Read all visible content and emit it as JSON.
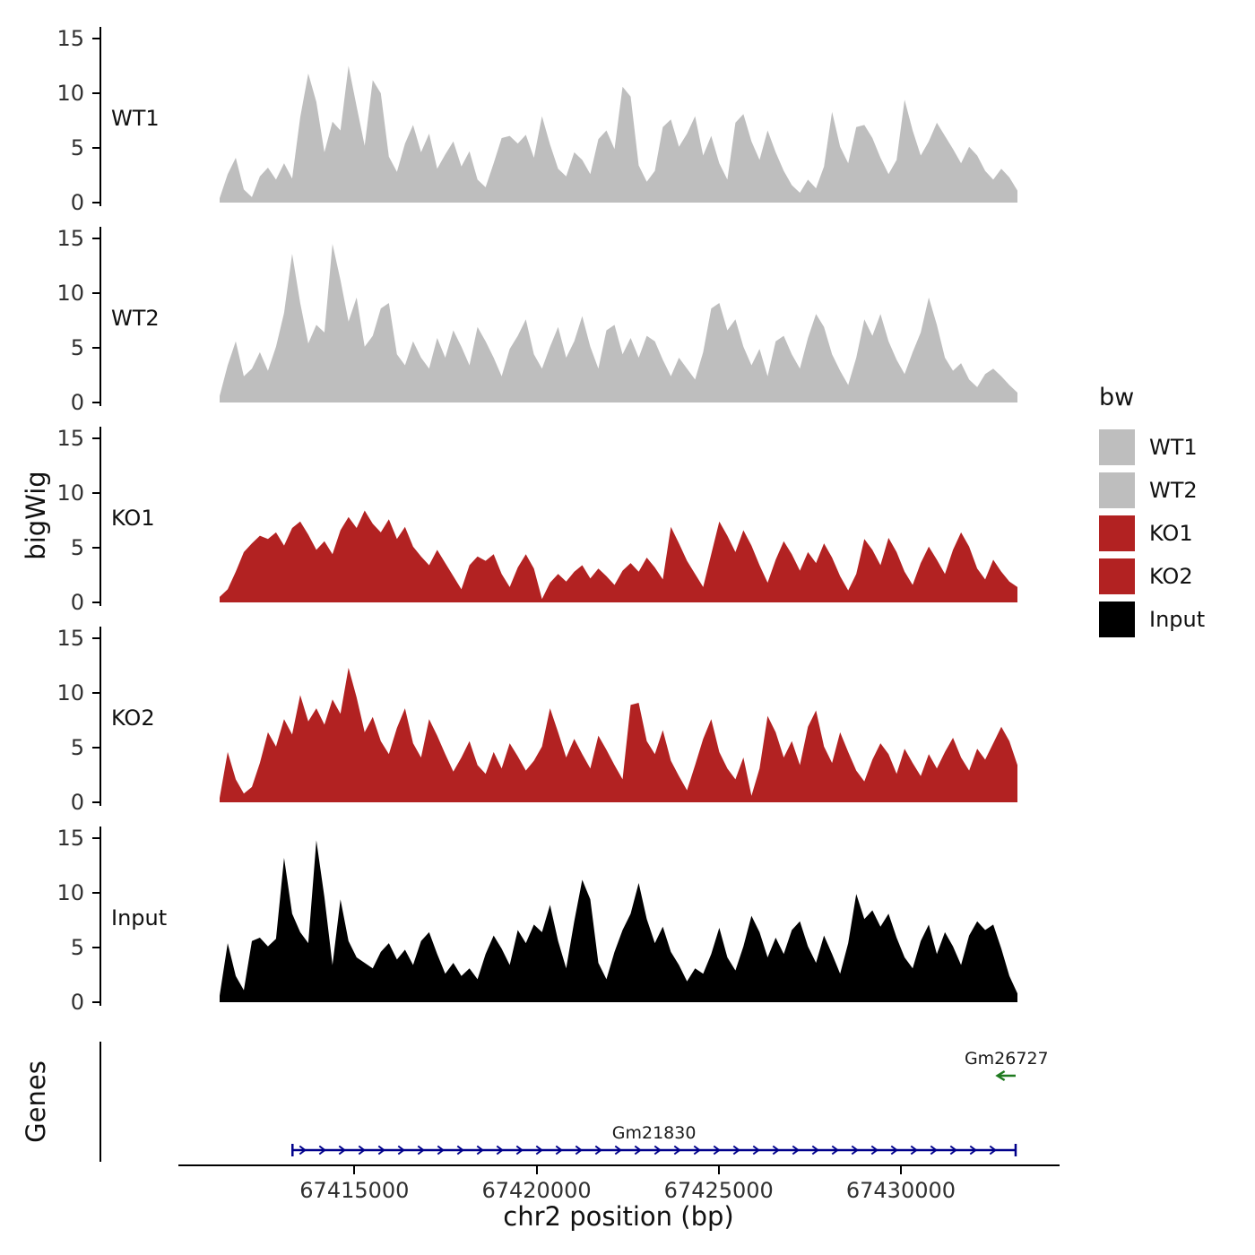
{
  "labels": {
    "y_axis_title": "bigWig",
    "genes_axis_title": "Genes",
    "x_axis_title": "chr2 position (bp)"
  },
  "legend": {
    "title": "bw",
    "items": [
      {
        "label": "WT1",
        "color": "#bebebe"
      },
      {
        "label": "WT2",
        "color": "#bebebe"
      },
      {
        "label": "KO1",
        "color": "#b22222"
      },
      {
        "label": "KO2",
        "color": "#b22222"
      },
      {
        "label": "Input",
        "color": "#000000"
      }
    ]
  },
  "chart_data": {
    "type": "area",
    "title": "",
    "xlabel": "chr2 position (bp)",
    "ylabel": "bigWig",
    "legend_position": "right",
    "x_domain_bp": [
      67411300,
      67433200
    ],
    "x_ticks": [
      67415000,
      67420000,
      67425000,
      67430000
    ],
    "y_ticks": [
      0,
      5,
      10,
      15
    ],
    "ylim": [
      0,
      15
    ],
    "tracks": [
      {
        "name": "WT1",
        "color": "#bebebe",
        "values": [
          0.4,
          2.6,
          4.1,
          1.2,
          0.5,
          2.4,
          3.2,
          2.1,
          3.6,
          2.2,
          7.8,
          11.8,
          9.2,
          4.6,
          7.4,
          6.6,
          12.5,
          8.8,
          5.2,
          11.2,
          10.0,
          4.2,
          2.8,
          5.4,
          7.1,
          4.6,
          6.3,
          3.1,
          4.4,
          5.6,
          3.3,
          4.7,
          2.1,
          1.4,
          3.6,
          5.9,
          6.1,
          5.4,
          6.2,
          4.1,
          7.9,
          5.3,
          3.1,
          2.4,
          4.6,
          3.9,
          2.6,
          5.8,
          6.6,
          4.9,
          10.6,
          9.7,
          3.4,
          1.9,
          2.9,
          6.9,
          7.6,
          5.1,
          6.3,
          7.9,
          4.3,
          6.1,
          3.6,
          2.1,
          7.3,
          8.1,
          5.6,
          3.9,
          6.6,
          4.6,
          2.9,
          1.6,
          0.9,
          2.1,
          1.3,
          3.3,
          8.3,
          5.1,
          3.6,
          6.9,
          7.1,
          5.9,
          4.1,
          2.6,
          3.9,
          9.4,
          6.6,
          4.3,
          5.6,
          7.3,
          6.1,
          4.9,
          3.6,
          5.1,
          4.3,
          2.9,
          2.1,
          3.1,
          2.3,
          1.1
        ]
      },
      {
        "name": "WT2",
        "color": "#bebebe",
        "values": [
          0.6,
          3.4,
          5.6,
          2.4,
          3.1,
          4.6,
          2.9,
          5.1,
          8.2,
          13.6,
          9.1,
          5.4,
          7.1,
          6.4,
          14.5,
          11.2,
          7.4,
          9.6,
          5.1,
          6.1,
          8.6,
          9.1,
          4.4,
          3.4,
          5.6,
          4.1,
          3.1,
          5.9,
          4.1,
          6.6,
          5.1,
          3.4,
          6.9,
          5.6,
          4.1,
          2.4,
          4.9,
          6.1,
          7.6,
          4.4,
          3.1,
          5.1,
          6.9,
          4.1,
          5.6,
          7.9,
          5.1,
          3.1,
          6.6,
          7.1,
          4.4,
          5.9,
          4.1,
          6.1,
          5.6,
          3.9,
          2.4,
          4.1,
          3.1,
          2.1,
          4.6,
          8.6,
          9.1,
          6.6,
          7.6,
          5.1,
          3.4,
          4.9,
          2.4,
          5.6,
          6.1,
          4.4,
          3.1,
          5.9,
          8.1,
          6.9,
          4.4,
          2.9,
          1.6,
          4.1,
          7.6,
          6.1,
          8.1,
          5.6,
          3.9,
          2.6,
          4.6,
          6.4,
          9.6,
          7.1,
          4.1,
          2.9,
          3.6,
          2.1,
          1.4,
          2.6,
          3.1,
          2.4,
          1.6,
          0.9
        ]
      },
      {
        "name": "KO1",
        "color": "#b22222",
        "values": [
          0.5,
          1.2,
          2.8,
          4.6,
          5.4,
          6.1,
          5.8,
          6.4,
          5.2,
          6.8,
          7.4,
          6.2,
          4.8,
          5.6,
          4.4,
          6.6,
          7.8,
          6.8,
          8.4,
          7.2,
          6.4,
          7.6,
          5.8,
          6.9,
          5.1,
          4.2,
          3.4,
          4.8,
          3.6,
          2.4,
          1.2,
          3.4,
          4.2,
          3.8,
          4.4,
          2.6,
          1.4,
          3.2,
          4.4,
          3.1,
          0.3,
          1.8,
          2.6,
          1.9,
          2.8,
          3.4,
          2.2,
          3.1,
          2.4,
          1.6,
          2.9,
          3.6,
          2.8,
          4.1,
          3.2,
          2.1,
          6.9,
          5.4,
          3.8,
          2.6,
          1.4,
          4.4,
          7.4,
          6.1,
          4.6,
          6.6,
          5.2,
          3.4,
          1.8,
          3.9,
          5.6,
          4.4,
          2.9,
          4.6,
          3.6,
          5.4,
          4.1,
          2.4,
          1.1,
          2.6,
          5.8,
          4.8,
          3.4,
          5.9,
          4.6,
          2.8,
          1.6,
          3.6,
          5.1,
          3.9,
          2.6,
          4.8,
          6.4,
          5.1,
          3.1,
          2.1,
          3.9,
          2.8,
          1.9,
          1.4
        ]
      },
      {
        "name": "KO2",
        "color": "#b22222",
        "values": [
          0.4,
          4.6,
          2.1,
          0.8,
          1.4,
          3.6,
          6.4,
          5.1,
          7.6,
          6.2,
          9.8,
          7.4,
          8.6,
          7.1,
          9.4,
          8.1,
          12.3,
          9.6,
          6.4,
          7.8,
          5.6,
          4.4,
          6.8,
          8.6,
          5.4,
          4.1,
          7.6,
          6.1,
          4.4,
          2.8,
          4.1,
          5.6,
          3.4,
          2.6,
          4.6,
          3.1,
          5.4,
          4.2,
          2.9,
          3.8,
          5.1,
          8.6,
          6.4,
          4.1,
          5.8,
          4.4,
          3.1,
          6.1,
          4.8,
          3.4,
          2.1,
          8.9,
          9.1,
          5.6,
          4.4,
          6.6,
          3.8,
          2.4,
          1.1,
          3.4,
          5.8,
          7.6,
          4.6,
          3.1,
          2.1,
          4.1,
          0.6,
          3.1,
          7.9,
          6.4,
          4.1,
          5.6,
          3.4,
          6.9,
          8.4,
          5.1,
          3.6,
          6.4,
          4.6,
          2.9,
          1.9,
          3.9,
          5.4,
          4.4,
          2.6,
          4.9,
          3.6,
          2.4,
          4.4,
          3.1,
          4.6,
          5.9,
          4.1,
          2.9,
          4.9,
          3.9,
          5.4,
          6.9,
          5.6,
          3.4
        ]
      },
      {
        "name": "Input",
        "color": "#000000",
        "values": [
          0.6,
          5.4,
          2.4,
          1.1,
          5.6,
          5.9,
          5.1,
          5.8,
          13.2,
          8.1,
          6.4,
          5.4,
          14.8,
          9.6,
          3.4,
          9.4,
          5.6,
          4.1,
          3.6,
          3.1,
          4.6,
          5.4,
          3.9,
          4.8,
          3.4,
          5.6,
          6.4,
          4.4,
          2.6,
          3.6,
          2.4,
          3.1,
          2.1,
          4.4,
          6.1,
          4.9,
          3.4,
          6.6,
          5.4,
          7.1,
          6.4,
          8.9,
          5.6,
          3.1,
          7.4,
          11.2,
          9.4,
          3.6,
          2.1,
          4.6,
          6.6,
          8.1,
          10.9,
          7.6,
          5.4,
          6.9,
          4.6,
          3.4,
          1.9,
          3.1,
          2.6,
          4.4,
          6.8,
          4.1,
          2.9,
          5.1,
          7.9,
          6.4,
          4.1,
          5.9,
          4.4,
          6.6,
          7.4,
          5.1,
          3.6,
          6.1,
          4.4,
          2.6,
          5.4,
          9.9,
          7.6,
          8.4,
          6.9,
          8.1,
          5.9,
          4.1,
          3.1,
          5.6,
          7.1,
          4.4,
          6.4,
          5.1,
          3.4,
          6.1,
          7.4,
          6.6,
          7.1,
          4.9,
          2.4,
          0.8
        ]
      }
    ],
    "genes": [
      {
        "name": "Gm26727",
        "strand": "-",
        "color": "#1f7a1f",
        "start_bp": 67432650,
        "end_bp": 67433150,
        "row": 0
      },
      {
        "name": "Gm21830",
        "strand": "+",
        "color": "#00008b",
        "start_bp": 67413300,
        "end_bp": 67433150,
        "row": 1
      }
    ]
  }
}
